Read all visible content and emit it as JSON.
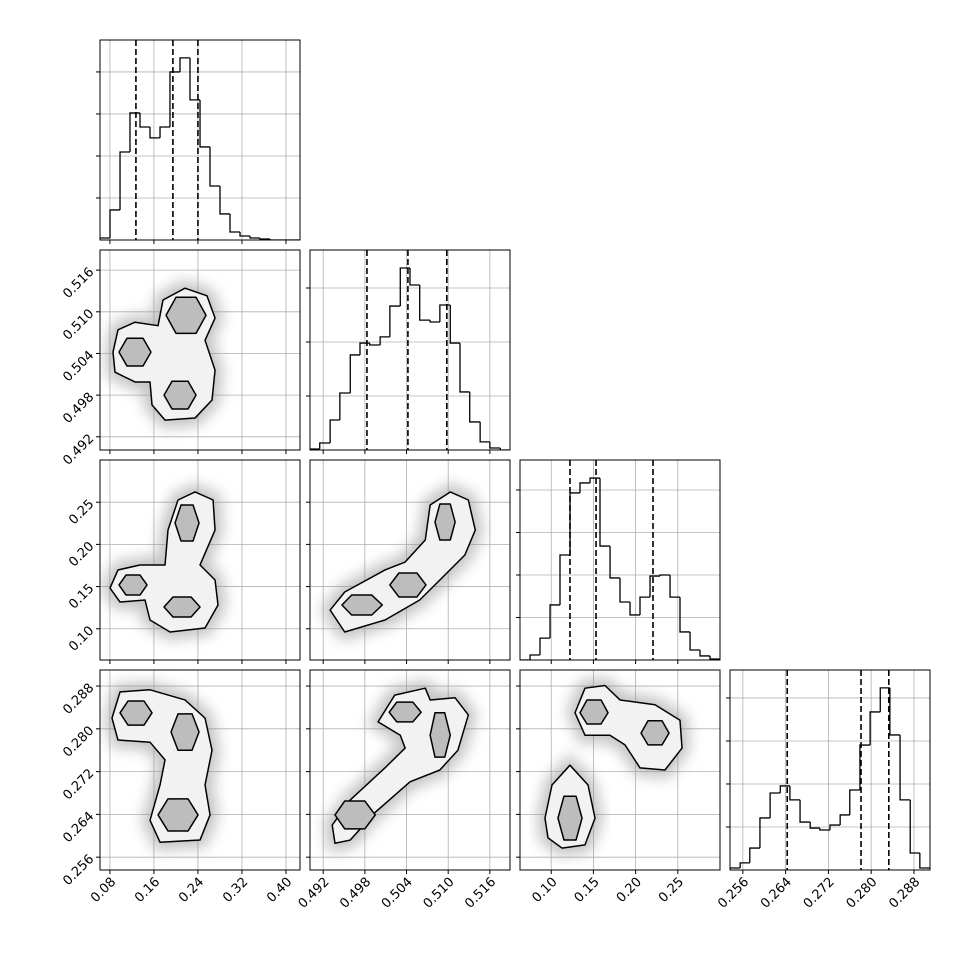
{
  "chart_data": {
    "type": "corner",
    "grid": true,
    "color": "#000000",
    "parameters": [
      {
        "xlim": [
          0.062,
          0.4255
        ],
        "xticks": [
          0.08,
          0.16,
          0.24,
          0.32,
          {
            "value": 0.4,
            "label": "0.40"
          }
        ],
        "quantiles": [
          0.1273,
          0.1945,
          0.24
        ],
        "hist": {
          "bins": [
            0.062,
            0.0802,
            0.0984,
            0.1165,
            0.1347,
            0.1529,
            0.1711,
            0.1892,
            0.2074,
            0.2256,
            0.2438,
            0.2619,
            0.2801,
            0.2983,
            0.3165,
            0.3346,
            0.3528,
            0.371,
            0.3892,
            0.4073,
            0.4255
          ],
          "values": [
            95,
            1430,
            4190,
            6050,
            5380,
            4860,
            5380,
            8000,
            8670,
            6670,
            4430,
            2570,
            1240,
            380,
            190,
            95,
            48,
            0,
            0,
            0
          ],
          "ylim": [
            0,
            9520
          ],
          "yticks": [
            2000,
            4000,
            6000,
            8000
          ]
        }
      },
      {
        "xlim": [
          0.4901,
          0.5189
        ],
        "xticks": [
          0.492,
          0.498,
          0.504,
          {
            "value": 0.51,
            "label": "0.510"
          },
          0.516
        ],
        "quantiles": [
          0.4983,
          0.5042,
          0.5098
        ],
        "hist": {
          "bins": [
            0.4901,
            0.4915,
            0.493,
            0.4944,
            0.4959,
            0.4973,
            0.4987,
            0.5002,
            0.5016,
            0.5031,
            0.5045,
            0.5059,
            0.5074,
            0.5088,
            0.5103,
            0.5117,
            0.5131,
            0.5146,
            0.516,
            0.5175,
            0.5189
          ],
          "values": [
            37,
            260,
            1110,
            2110,
            3520,
            3960,
            3890,
            4190,
            5330,
            6740,
            6110,
            4810,
            4740,
            5370,
            3960,
            2150,
            1040,
            300,
            74,
            0
          ],
          "ylim": [
            0,
            7407
          ],
          "yticks": [
            2000,
            4000,
            6000
          ]
        },
        "joint": [
          {
            "outer": [
              {
                "x": [
                  0.0856,
                  0.0947,
                  0.1256,
                  0.1675,
                  0.1765,
                  0.2165,
                  0.2565,
                  0.2711,
                  0.2529,
                  0.2711,
                  0.2656,
                  0.2347,
                  0.1802,
                  0.1565,
                  0.1529,
                  0.1256,
                  0.0893
                ],
                "y": [
                  0.5042,
                  0.5074,
                  0.5085,
                  0.508,
                  0.5117,
                  0.5134,
                  0.5123,
                  0.5091,
                  0.5059,
                  0.5016,
                  0.4973,
                  0.4947,
                  0.4944,
                  0.4966,
                  0.4999,
                  0.4999,
                  0.5013
                ]
              }
            ],
            "inner": [
              {
                "x": [
                  0.0965,
                  0.1111,
                  0.1402,
                  0.1547,
                  0.1402,
                  0.1111
                ],
                "y": [
                  0.5042,
                  0.5062,
                  0.5062,
                  0.5042,
                  0.5022,
                  0.5022
                ]
              },
              {
                "x": [
                  0.182,
                  0.2002,
                  0.2365,
                  0.2547,
                  0.2365,
                  0.2002
                ],
                "y": [
                  0.5095,
                  0.5121,
                  0.5121,
                  0.5095,
                  0.5069,
                  0.5069
                ]
              },
              {
                "x": [
                  0.1784,
                  0.1929,
                  0.222,
                  0.2365,
                  0.222,
                  0.1929
                ],
                "y": [
                  0.498,
                  0.5,
                  0.5,
                  0.498,
                  0.496,
                  0.496
                ]
              }
            ]
          }
        ]
      },
      {
        "xlim": [
          0.063,
          0.3
        ],
        "xticks": [
          {
            "value": 0.1,
            "label": "0.10"
          },
          0.15,
          {
            "value": 0.2,
            "label": "0.20"
          },
          0.25
        ],
        "quantiles": [
          0.1222,
          0.1531,
          0.2206
        ],
        "hist": {
          "bins": [
            0.063,
            0.0749,
            0.0867,
            0.0986,
            0.1104,
            0.1223,
            0.1341,
            0.146,
            0.1578,
            0.1697,
            0.1815,
            0.1934,
            0.2052,
            0.2171,
            0.2289,
            0.2408,
            0.2526,
            0.2645,
            0.2763,
            0.2882,
            0.3
          ],
          "values": [
            0,
            235,
            1030,
            2590,
            4940,
            7860,
            8330,
            8560,
            5360,
            3860,
            2730,
            2120,
            2960,
            3950,
            4000,
            2960,
            1320,
            470,
            190,
            47
          ],
          "ylim": [
            0,
            9410
          ],
          "yticks": [
            2000,
            4000,
            6000,
            8000
          ]
        },
        "joint": [
          {
            "outer": [
              {
                "x": [
                  0.0802,
                  0.0947,
                  0.1347,
                  0.1802,
                  0.1856,
                  0.2038,
                  0.2347,
                  0.2675,
                  0.2711,
                  0.2438,
                  0.2711,
                  0.2765,
                  0.2529,
                  0.1893,
                  0.1529,
                  0.1438,
                  0.0984
                ],
                "y": [
                  0.1483,
                  0.1697,
                  0.1756,
                  0.1756,
                  0.217,
                  0.2526,
                  0.2621,
                  0.2526,
                  0.217,
                  0.1756,
                  0.1578,
                  0.1282,
                  0.1009,
                  0.0962,
                  0.1104,
                  0.1341,
                  0.1317
                ]
              }
            ],
            "inner": [
              {
                "x": [
                  0.0965,
                  0.1093,
                  0.1347,
                  0.1475,
                  0.1347,
                  0.1093
                ],
                "y": [
                  0.1519,
                  0.1637,
                  0.1637,
                  0.1519,
                  0.14,
                  0.14
                ]
              },
              {
                "x": [
                  0.1984,
                  0.2093,
                  0.2311,
                  0.242,
                  0.2311,
                  0.2093
                ],
                "y": [
                  0.2253,
                  0.2467,
                  0.2467,
                  0.2253,
                  0.204,
                  0.204
                ]
              },
              {
                "x": [
                  0.1784,
                  0.1947,
                  0.2275,
                  0.2438,
                  0.2275,
                  0.1947
                ],
                "y": [
                  0.1258,
                  0.1377,
                  0.1377,
                  0.1258,
                  0.114,
                  0.114
                ]
              }
            ]
          },
          {
            "outer": [
              {
                "x": [
                  0.493,
                  0.4951,
                  0.5009,
                  0.5038,
                  0.5067,
                  0.5074,
                  0.5103,
                  0.5129,
                  0.5139,
                  0.5124,
                  0.5088,
                  0.5059,
                  0.5009,
                  0.4951
                ],
                "y": [
                  0.1222,
                  0.1436,
                  0.1697,
                  0.1791,
                  0.2052,
                  0.2467,
                  0.2621,
                  0.2526,
                  0.217,
                  0.1874,
                  0.1578,
                  0.1341,
                  0.1104,
                  0.0962
                ]
              }
            ],
            "inner": [
              {
                "x": [
                  0.4947,
                  0.4961,
                  0.499,
                  0.5005,
                  0.499,
                  0.4961
                ],
                "y": [
                  0.1282,
                  0.14,
                  0.14,
                  0.1282,
                  0.1163,
                  0.1163
                ]
              },
              {
                "x": [
                  0.5016,
                  0.5029,
                  0.5055,
                  0.5068,
                  0.5055,
                  0.5029
                ],
                "y": [
                  0.1519,
                  0.1661,
                  0.1661,
                  0.1519,
                  0.1377,
                  0.1377
                ]
              },
              {
                "x": [
                  0.5081,
                  0.5088,
                  0.5103,
                  0.511,
                  0.5103,
                  0.5088
                ],
                "y": [
                  0.2265,
                  0.2478,
                  0.2478,
                  0.2265,
                  0.2052,
                  0.2052
                ]
              }
            ]
          }
        ]
      },
      {
        "xlim": [
          0.2536,
          0.291
        ],
        "xticks": [
          0.256,
          0.264,
          0.272,
          {
            "value": 0.28,
            "label": "0.280"
          },
          0.288
        ],
        "quantiles": [
          0.2643,
          0.2781,
          0.2833
        ],
        "hist": {
          "bins": [
            0.2536,
            0.2555,
            0.2573,
            0.2592,
            0.2611,
            0.263,
            0.2648,
            0.2667,
            0.2686,
            0.2704,
            0.2723,
            0.2742,
            0.276,
            0.2779,
            0.2798,
            0.2817,
            0.2835,
            0.2854,
            0.2873,
            0.2891,
            0.291
          ],
          "values": [
            93,
            330,
            1020,
            2420,
            3580,
            3910,
            3260,
            2230,
            1950,
            1860,
            2090,
            2560,
            3720,
            5810,
            7350,
            8470,
            6280,
            3260,
            790,
            93
          ],
          "ylim": [
            0,
            9300
          ],
          "yticks": [
            2000,
            4000,
            6000,
            8000
          ]
        },
        "joint": [
          {
            "outer": [
              {
                "x": [
                  0.0838,
                  0.0984,
                  0.1529,
                  0.2165,
                  0.2529,
                  0.2656,
                  0.2529,
                  0.262,
                  0.2438,
                  0.1711,
                  0.1529,
                  0.1711,
                  0.1802,
                  0.1529,
                  0.0947
                ],
                "y": [
                  0.282,
                  0.2869,
                  0.2873,
                  0.2854,
                  0.282,
                  0.276,
                  0.2695,
                  0.2639,
                  0.2592,
                  0.2588,
                  0.2629,
                  0.2695,
                  0.2742,
                  0.2775,
                  0.2779
                ]
              }
            ],
            "inner": [
              {
                "x": [
                  0.0984,
                  0.1129,
                  0.142,
                  0.1565,
                  0.142,
                  0.1129
                ],
                "y": [
                  0.283,
                  0.2852,
                  0.2852,
                  0.283,
                  0.2807,
                  0.2807
                ]
              },
              {
                "x": [
                  0.1911,
                  0.2038,
                  0.2293,
                  0.242,
                  0.2293,
                  0.2038
                ],
                "y": [
                  0.2794,
                  0.2828,
                  0.2828,
                  0.2794,
                  0.276,
                  0.276
                ]
              },
              {
                "x": [
                  0.1675,
                  0.1856,
                  0.222,
                  0.2402,
                  0.222,
                  0.1856
                ],
                "y": [
                  0.2639,
                  0.2669,
                  0.2669,
                  0.2639,
                  0.2609,
                  0.2609
                ]
              }
            ]
          },
          {
            "outer": [
              {
                "x": [
                  0.4999,
                  0.5023,
                  0.5067,
                  0.5074,
                  0.511,
                  0.5129,
                  0.5114,
                  0.5088,
                  0.5045,
                  0.4995,
                  0.4959,
                  0.4937,
                  0.4933,
                  0.4959,
                  0.5009,
                  0.5038,
                  0.5031
                ],
                "y": [
                  0.2813,
                  0.2863,
                  0.2876,
                  0.2854,
                  0.2858,
                  0.2826,
                  0.276,
                  0.2723,
                  0.2701,
                  0.2644,
                  0.2592,
                  0.2586,
                  0.262,
                  0.2667,
                  0.2727,
                  0.2764,
                  0.2788
                ]
              }
            ],
            "inner": [
              {
                "x": [
                  0.5015,
                  0.5026,
                  0.5049,
                  0.5061,
                  0.5049,
                  0.5026
                ],
                "y": [
                  0.2831,
                  0.285,
                  0.285,
                  0.2831,
                  0.2813,
                  0.2813
                ]
              },
              {
                "x": [
                  0.5074,
                  0.5081,
                  0.5095,
                  0.5103,
                  0.5095,
                  0.5081
                ],
                "y": [
                  0.2788,
                  0.283,
                  0.283,
                  0.2788,
                  0.2747,
                  0.2747
                ]
              },
              {
                "x": [
                  0.4937,
                  0.4951,
                  0.498,
                  0.4995,
                  0.498,
                  0.4951
                ],
                "y": [
                  0.2639,
                  0.2665,
                  0.2665,
                  0.2639,
                  0.2613,
                  0.2613
                ]
              }
            ]
          },
          {
            "outer": [
              {
                "x": [
                  0.1282,
                  0.14,
                  0.1637,
                  0.1815,
                  0.223,
                  0.2526,
                  0.255,
                  0.2348,
                  0.2052,
                  0.1874,
                  0.1696,
                  0.14
                ],
                "y": [
                  0.283,
                  0.2876,
                  0.2881,
                  0.2854,
                  0.2845,
                  0.2816,
                  0.2764,
                  0.2723,
                  0.2727,
                  0.277,
                  0.2788,
                  0.2788
                ]
              },
              {
                "x": [
                  0.0926,
                  0.1009,
                  0.1222,
                  0.1436,
                  0.1519,
                  0.14,
                  0.1128,
                  0.0962
                ],
                "y": [
                  0.2633,
                  0.2695,
                  0.2732,
                  0.2695,
                  0.2633,
                  0.2583,
                  0.2577,
                  0.2596
                ]
              }
            ],
            "inner": [
              {
                "x": [
                  0.1341,
                  0.1424,
                  0.159,
                  0.1673,
                  0.159,
                  0.1424
                ],
                "y": [
                  0.283,
                  0.2854,
                  0.2854,
                  0.283,
                  0.2809,
                  0.2809
                ]
              },
              {
                "x": [
                  0.2064,
                  0.2147,
                  0.2313,
                  0.2396,
                  0.2313,
                  0.2147
                ],
                "y": [
                  0.2792,
                  0.2815,
                  0.2815,
                  0.2792,
                  0.277,
                  0.277
                ]
              },
              {
                "x": [
                  0.108,
                  0.1151,
                  0.1294,
                  0.1365,
                  0.1294,
                  0.1151
                ],
                "y": [
                  0.2633,
                  0.2674,
                  0.2674,
                  0.2633,
                  0.2592,
                  0.2592
                ]
              }
            ]
          }
        ]
      }
    ]
  }
}
